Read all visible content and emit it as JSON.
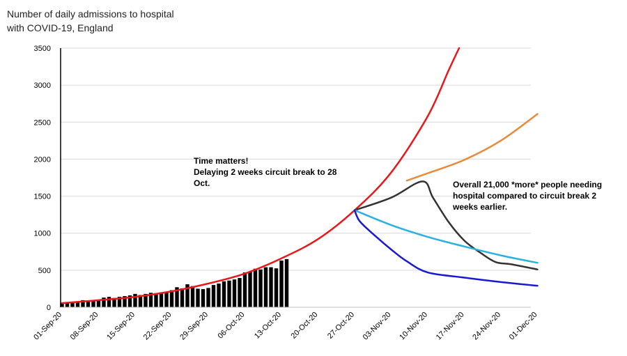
{
  "chart_data": {
    "type": "bar",
    "title": "Number of daily admissions to hospital with COVID-19, England",
    "xlabel": "",
    "ylabel": "",
    "ylim": [
      0,
      3500
    ],
    "yticks": [
      "0",
      "500",
      "1000",
      "1500",
      "2000",
      "2500",
      "3000",
      "3500"
    ],
    "xticks": [
      "01-Sep-20",
      "08-Sep-20",
      "15-Sep-20",
      "22-Sep-20",
      "29-Sep-20",
      "06-Oct-20",
      "13-Oct-20",
      "20-Oct-20",
      "27-Oct-20",
      "03-Nov-20",
      "10-Nov-20",
      "17-Nov-20",
      "24-Nov-20",
      "01-Dec-20"
    ],
    "grid": "horizontal",
    "bars": {
      "start_date": "01-Sep-20",
      "color": "#000000",
      "values": [
        60,
        65,
        70,
        75,
        95,
        80,
        80,
        90,
        130,
        140,
        125,
        140,
        150,
        160,
        180,
        165,
        180,
        195,
        190,
        200,
        205,
        230,
        270,
        255,
        310,
        285,
        250,
        245,
        260,
        300,
        320,
        350,
        360,
        375,
        395,
        470,
        480,
        520,
        510,
        540,
        540,
        525,
        630,
        650
      ]
    },
    "series": [
      {
        "color": "#e8171b",
        "points": [
          [
            "01-Sep-20",
            55
          ],
          [
            "08-Sep-20",
            95
          ],
          [
            "15-Sep-20",
            140
          ],
          [
            "22-Sep-20",
            215
          ],
          [
            "29-Sep-20",
            320
          ],
          [
            "06-Oct-20",
            455
          ],
          [
            "13-Oct-20",
            660
          ],
          [
            "20-Oct-20",
            920
          ],
          [
            "27-Oct-20",
            1310
          ],
          [
            "03-Nov-20",
            1820
          ],
          [
            "10-Nov-20",
            2580
          ],
          [
            "14-Nov-20",
            3200
          ],
          [
            "16-Nov-20",
            3500
          ]
        ]
      },
      {
        "color": "#e9893a",
        "points": [
          [
            "06-Nov-20",
            1710
          ],
          [
            "10-Nov-20",
            1810
          ],
          [
            "17-Nov-20",
            1990
          ],
          [
            "24-Nov-20",
            2250
          ],
          [
            "01-Dec-20",
            2610
          ]
        ]
      },
      {
        "color": "#333333",
        "points": [
          [
            "27-Oct-20",
            1310
          ],
          [
            "03-Nov-20",
            1480
          ],
          [
            "09-Nov-20",
            1700
          ],
          [
            "11-Nov-20",
            1480
          ],
          [
            "14-Nov-20",
            1150
          ],
          [
            "17-Nov-20",
            900
          ],
          [
            "20-Nov-20",
            740
          ],
          [
            "23-Nov-20",
            610
          ],
          [
            "26-Nov-20",
            580
          ],
          [
            "01-Dec-20",
            510
          ]
        ]
      },
      {
        "color": "#2bb0e2",
        "points": [
          [
            "27-Oct-20",
            1310
          ],
          [
            "03-Nov-20",
            1110
          ],
          [
            "10-Nov-20",
            950
          ],
          [
            "17-Nov-20",
            820
          ],
          [
            "24-Nov-20",
            700
          ],
          [
            "01-Dec-20",
            600
          ]
        ]
      },
      {
        "color": "#1919d2",
        "points": [
          [
            "27-Oct-20",
            1310
          ],
          [
            "28-Oct-20",
            1160
          ],
          [
            "31-Oct-20",
            960
          ],
          [
            "03-Nov-20",
            780
          ],
          [
            "06-Nov-20",
            620
          ],
          [
            "10-Nov-20",
            470
          ],
          [
            "17-Nov-20",
            400
          ],
          [
            "24-Nov-20",
            340
          ],
          [
            "01-Dec-20",
            290
          ]
        ]
      }
    ],
    "annotations": [
      [
        "Time matters!",
        "Delaying 2 weeks circuit break to 28 Oct."
      ],
      [
        "Overall 21,000 *more* people needing",
        "hospital compared to circuit break 2",
        "weeks earlier."
      ]
    ]
  }
}
